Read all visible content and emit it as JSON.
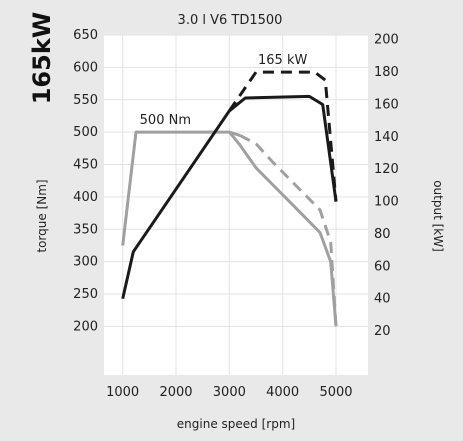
{
  "chart_data": {
    "type": "line",
    "title": "3.0 l V6 TD1500",
    "side_label": "165kW",
    "xlabel": "engine speed [rpm]",
    "ylabel": "torque [Nm]",
    "y2label": "output [kW]",
    "xlim": [
      650,
      5600
    ],
    "ylim": [
      125,
      650
    ],
    "y2lim": [
      -7.1,
      202.9
    ],
    "x_ticks": [
      1000,
      2000,
      3000,
      4000,
      5000
    ],
    "y_ticks": [
      200,
      250,
      300,
      350,
      400,
      450,
      500,
      550,
      600,
      650
    ],
    "y2_ticks": [
      20,
      40,
      60,
      80,
      100,
      120,
      140,
      160,
      180,
      200
    ],
    "grid": true,
    "annotations": [
      {
        "text": "500 Nm",
        "x": 1800,
        "y": 500
      },
      {
        "text": "165 kW",
        "x": 4000,
        "y": 180
      }
    ],
    "series": [
      {
        "kind": "torque",
        "style": "solid",
        "color": "#a0a0a0",
        "axis": "left",
        "x": [
          1000,
          1250,
          3000,
          3200
        ],
        "y": [
          325,
          500,
          500,
          495
        ]
      },
      {
        "kind": "torque",
        "style": "dashed",
        "color": "#a0a0a0",
        "axis": "left",
        "x": [
          3200,
          3500,
          3800,
          4100,
          4400,
          4700,
          4900,
          5000
        ],
        "y": [
          495,
          482,
          455,
          430,
          405,
          380,
          330,
          200
        ]
      },
      {
        "kind": "torque",
        "style": "solid",
        "color": "#a0a0a0",
        "axis": "left",
        "x": [
          3000,
          3200,
          3500,
          3800,
          4100,
          4400,
          4700,
          4900,
          5000
        ],
        "y": [
          500,
          480,
          445,
          420,
          395,
          370,
          345,
          300,
          200
        ]
      },
      {
        "kind": "output",
        "style": "solid",
        "color": "#1a1a1a",
        "axis": "right",
        "x": [
          1000,
          1200,
          3000,
          3300,
          4500,
          4750,
          5000
        ],
        "y": [
          40,
          69,
          156,
          164,
          165,
          160,
          100
        ]
      },
      {
        "kind": "output",
        "style": "dashed",
        "color": "#1a1a1a",
        "axis": "right",
        "x": [
          3000,
          3500,
          4600,
          4800,
          5000
        ],
        "y": [
          156,
          180,
          180,
          175,
          100
        ]
      }
    ]
  }
}
